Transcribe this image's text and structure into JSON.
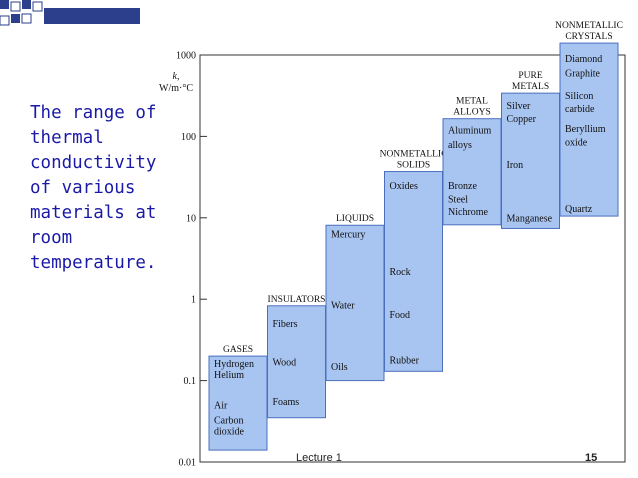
{
  "slide": {
    "caption": "The range of\nthermal\nconductivity\nof various\nmaterials at\nroom\ntemperature.",
    "footer_lecture": "Lecture 1",
    "page_number": "15",
    "accent_color": "#1a1aa6",
    "square_color": "#2b3f8c"
  },
  "chart_data": {
    "type": "range-bar",
    "ylabel": "k, W/m·°C",
    "yscale": "log",
    "ylim": [
      0.01,
      1000
    ],
    "yticks": [
      "0.01",
      "0.1",
      "1",
      "10",
      "100",
      "1000"
    ],
    "grid": false,
    "bar_color": "#a8c4f0",
    "bar_edge_color": "#4a6fbf",
    "categories": [
      {
        "title": [
          "GASES"
        ],
        "range": [
          0.014,
          0.2
        ],
        "items": [
          {
            "label": "Hydrogen",
            "k": 0.17
          },
          {
            "label": "Helium",
            "k": 0.13
          },
          {
            "label": "Air",
            "k": 0.05
          },
          {
            "label": "Carbon",
            "k": 0.033
          },
          {
            "label": "dioxide",
            "k": 0.024
          }
        ]
      },
      {
        "title": [
          "INSULATORS"
        ],
        "range": [
          0.035,
          0.83
        ],
        "items": [
          {
            "label": "Fibers",
            "k": 0.5
          },
          {
            "label": "Wood",
            "k": 0.17
          },
          {
            "label": "Foams",
            "k": 0.055
          }
        ]
      },
      {
        "title": [
          "LIQUIDS"
        ],
        "range": [
          0.1,
          8.1
        ],
        "items": [
          {
            "label": "Mercury",
            "k": 6.3
          },
          {
            "label": "Water",
            "k": 0.85
          },
          {
            "label": "Oils",
            "k": 0.15
          }
        ]
      },
      {
        "title": [
          "NONMETALLIC",
          "SOLIDS"
        ],
        "range": [
          0.13,
          37
        ],
        "items": [
          {
            "label": "Oxides",
            "k": 25
          },
          {
            "label": "Rock",
            "k": 2.2
          },
          {
            "label": "Food",
            "k": 0.65
          },
          {
            "label": "Rubber",
            "k": 0.18
          }
        ]
      },
      {
        "title": [
          "METAL",
          "ALLOYS"
        ],
        "range": [
          8.2,
          165
        ],
        "items": [
          {
            "label": "Aluminum",
            "k": 120
          },
          {
            "label": "alloys",
            "k": 80
          },
          {
            "label": "Bronze",
            "k": 25
          },
          {
            "label": "Steel",
            "k": 17
          },
          {
            "label": "Nichrome",
            "k": 12
          }
        ]
      },
      {
        "title": [
          "PURE",
          "METALS"
        ],
        "range": [
          7.4,
          340
        ],
        "items": [
          {
            "label": "Silver",
            "k": 240
          },
          {
            "label": "Copper",
            "k": 165
          },
          {
            "label": "Iron",
            "k": 45
          },
          {
            "label": "Manganese",
            "k": 10
          }
        ]
      },
      {
        "title": [
          "NONMETALLIC",
          "CRYSTALS"
        ],
        "range": [
          10.5,
          1400
        ],
        "items": [
          {
            "label": "Diamond",
            "k": 900
          },
          {
            "label": "Graphite",
            "k": 600
          },
          {
            "label": "Silicon",
            "k": 320
          },
          {
            "label": "carbide",
            "k": 220
          },
          {
            "label": "Beryllium",
            "k": 125
          },
          {
            "label": "oxide",
            "k": 85
          },
          {
            "label": "Quartz",
            "k": 13
          }
        ]
      }
    ]
  }
}
